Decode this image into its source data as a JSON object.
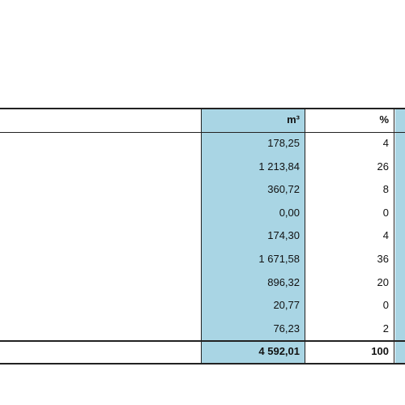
{
  "table": {
    "header": [
      "m³",
      "%"
    ],
    "rows": [
      [
        "178,25",
        4
      ],
      [
        "1 213,84",
        26
      ],
      [
        "360,72",
        8
      ],
      [
        "0,00",
        0
      ],
      [
        "174,30",
        4
      ],
      [
        "1 671,58",
        36
      ],
      [
        "896,32",
        20
      ],
      [
        "20,77",
        0
      ],
      [
        "76,23",
        2
      ]
    ],
    "total": [
      "4 592,01",
      100
    ]
  }
}
